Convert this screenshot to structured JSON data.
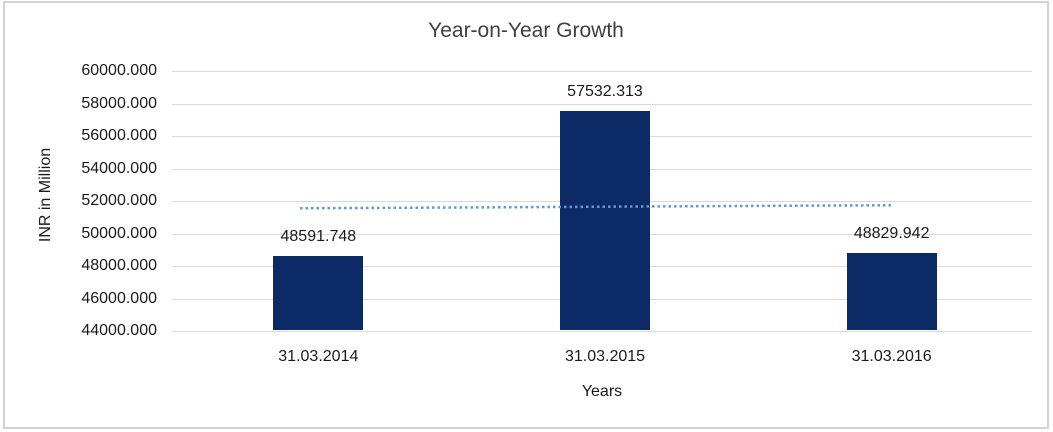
{
  "frame": {
    "border_color": "#d2d2d2"
  },
  "chart_data": {
    "type": "bar",
    "title": "Year-on-Year Growth",
    "xlabel": "Years",
    "ylabel": "INR in Million",
    "categories": [
      "31.03.2014",
      "31.03.2015",
      "31.03.2016"
    ],
    "values": [
      48591.748,
      57532.313,
      48829.942
    ],
    "data_labels": [
      "48591.748",
      "57532.313",
      "48829.942"
    ],
    "ylim": [
      44000,
      60000
    ],
    "ytick_step": 2000,
    "ytick_decimals": 3,
    "ytick_labels": [
      "44000.000",
      "46000.000",
      "48000.000",
      "50000.000",
      "52000.000",
      "54000.000",
      "56000.000",
      "58000.000",
      "60000.000"
    ],
    "grid": true,
    "legend": "none",
    "bar_color": "#0b2a66",
    "gridline_color": "#d9d9d9",
    "title_color": "#404040",
    "text_color": "#1a1a1a",
    "trendline": {
      "type": "linear",
      "style": "dotted",
      "color": "#5b9bd5",
      "start_value": 51560,
      "end_value": 51745
    }
  }
}
